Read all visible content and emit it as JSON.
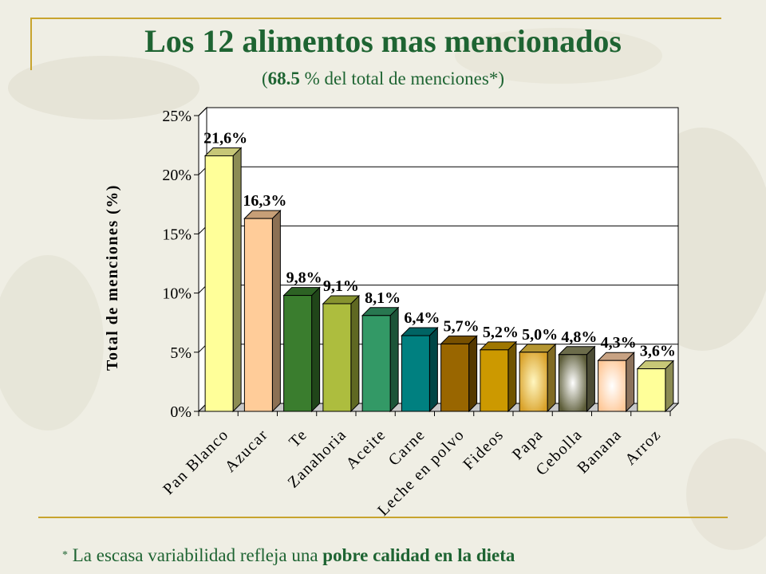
{
  "header": {
    "title": "Los 12 alimentos mas mencionados",
    "subtitle_open": "(",
    "subtitle_bold": "68.5",
    "subtitle_rest": " % del total de menciones*)"
  },
  "footnote": {
    "star": "*",
    "text": " La escasa variabilidad refleja una ",
    "bold": "pobre calidad en la dieta"
  },
  "chart_data": {
    "type": "bar",
    "title": "",
    "xlabel": "",
    "ylabel": "Total de menciones (%)",
    "ylim": [
      0,
      25
    ],
    "y_ticks": [
      "0%",
      "5%",
      "10%",
      "15%",
      "20%",
      "25%"
    ],
    "grid": true,
    "legend": "none",
    "categories": [
      "Pan Blanco",
      "Azucar",
      "Te",
      "Zanahoria",
      "Aceite",
      "Carne",
      "Leche en polvo",
      "Fideos",
      "Papa",
      "Cebolla",
      "Banana",
      "Arroz"
    ],
    "values": [
      21.6,
      16.3,
      9.8,
      9.1,
      8.1,
      6.4,
      5.7,
      5.2,
      5.0,
      4.8,
      4.3,
      3.6
    ],
    "labels": [
      "21,6%",
      "16,3%",
      "9,8%",
      "9,1%",
      "8,1%",
      "6,4%",
      "5,7%",
      "5,2%",
      "5,0%",
      "4,8%",
      "4,3%",
      "3,6%"
    ],
    "colors": [
      "#ffff99",
      "#ffcc99",
      "#3a7d2e",
      "#adbd3e",
      "#339966",
      "#008080",
      "#996600",
      "#cc9900",
      "#e8c040",
      "#8a8a60",
      "#ffd0a8",
      "#ffff99"
    ]
  }
}
